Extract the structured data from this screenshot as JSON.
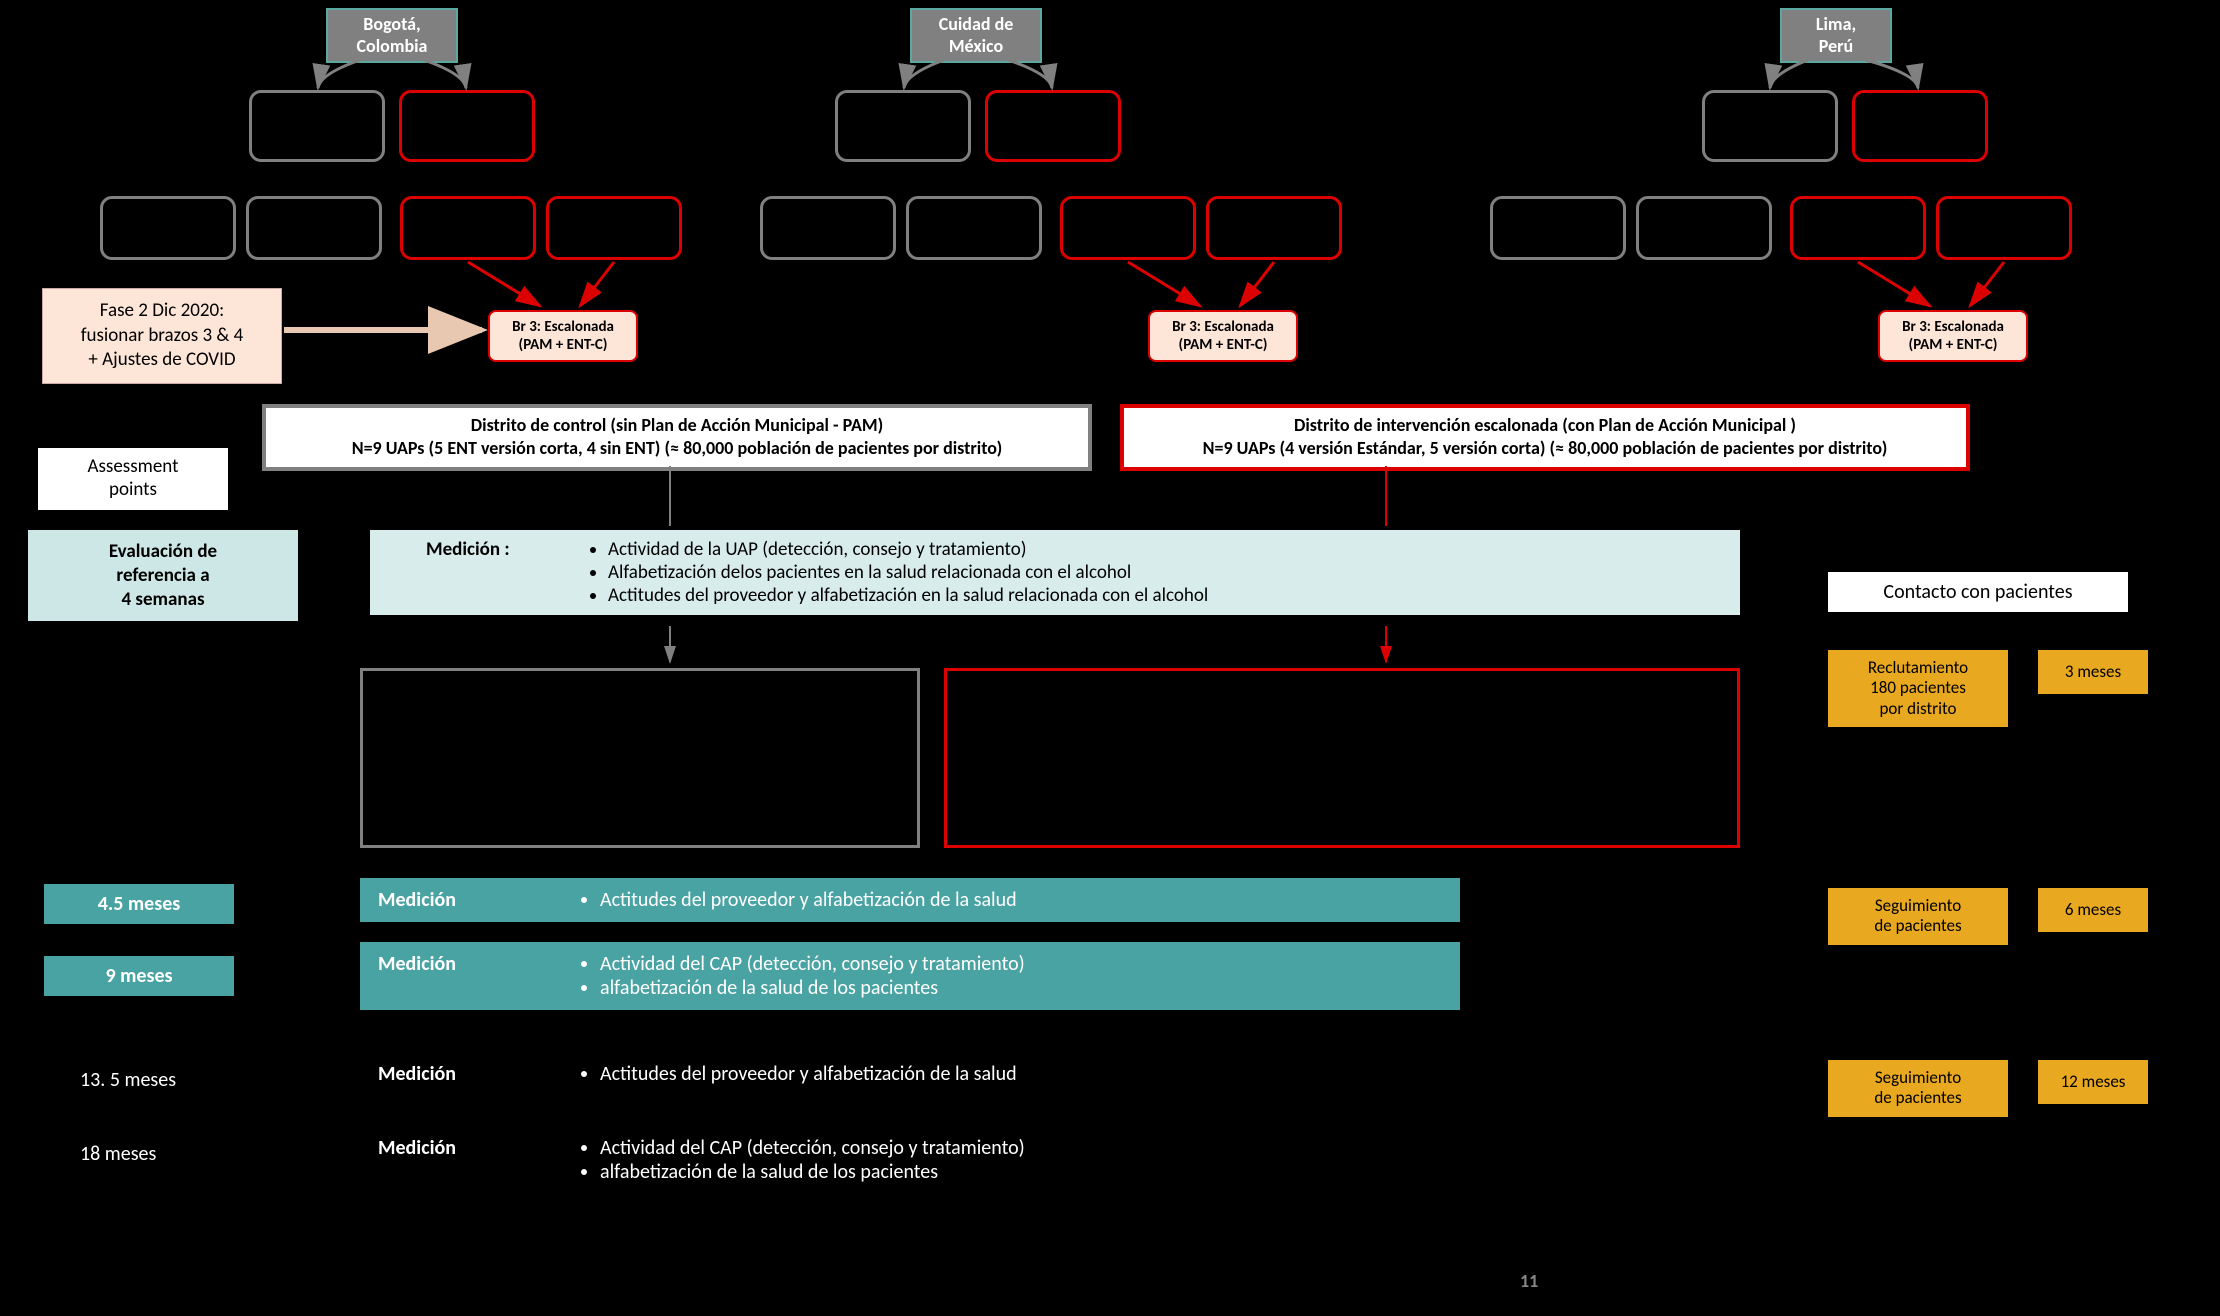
{
  "page_number": "11",
  "colors": {
    "bg": "#000000",
    "grey": "#808080",
    "red": "#d00000",
    "teal_city_border": "#5aa8a0",
    "teal_bg": "#4aa3a3",
    "light_teal_bg": "#cde6e6",
    "lighter_teal_bg": "#d9ecec",
    "peach_bg": "#fde6d8",
    "orange_bg": "#e8a820",
    "white": "#ffffff"
  },
  "cities": [
    {
      "name": "Bogotá,\nColombia"
    },
    {
      "name": "Cuidad de\nMéxico"
    },
    {
      "name": "Lima,\nPerú"
    }
  ],
  "br3_label": "Br 3: Escalonada\n(PAM + ENT-C)",
  "phase2": "Fase 2 Dic 2020:\nfusionar brazos 3 & 4\n+ Ajustes de COVID",
  "district_control": "Distrito de control (sin Plan de Acción Municipal - PAM)\nN=9 UAPs (5 ENT versión corta, 4 sin ENT) (≈ 80,000 población de pacientes por distrito)",
  "district_intervention": "Distrito de intervención escalonada (con Plan de Acción Municipal )\nN=9 UAPs (4 versión Estándar, 5 versión corta)  (≈ 80,000 población de pacientes por distrito)",
  "assessment_points_label": "Assessment\npoints",
  "eval_ref_label": "Evaluación de\nreferencia a\n4 semanas",
  "medicion_baseline": {
    "label": "Medición :",
    "bullets": [
      "Actividad de la UAP (detección, consejo y tratamiento)",
      "Alfabetización delos pacientes en la salud relacionada con el alcohol",
      "Actitudes del proveedor y alfabetización en la salud relacionada con el alcohol"
    ]
  },
  "timepoints": [
    {
      "time": "4.5 meses",
      "style": "teal",
      "label": "Medición",
      "bullets": [
        "Actitudes del proveedor y alfabetización de la salud"
      ]
    },
    {
      "time": "9 meses",
      "style": "teal",
      "label": "Medición",
      "bullets": [
        "Actividad del CAP (detección, consejo y tratamiento)",
        "alfabetización de la salud de los pacientes"
      ]
    },
    {
      "time": "13. 5 meses",
      "style": "black",
      "label": "Medición",
      "bullets": [
        "Actitudes del proveedor y alfabetización de la salud"
      ]
    },
    {
      "time": "18 meses",
      "style": "black",
      "label": "Medición",
      "bullets": [
        "Actividad del CAP (detección, consejo y tratamiento)",
        "alfabetización de la salud de los pacientes"
      ]
    }
  ],
  "contacto_label": "Contacto con pacientes",
  "patient_rows": [
    {
      "left": "Reclutamiento\n180 pacientes\npor distrito",
      "right": "3 meses"
    },
    {
      "left": "Seguimiento\nde pacientes",
      "right": "6 meses"
    },
    {
      "left": "Seguimiento\nde pacientes",
      "right": "12 meses"
    }
  ]
}
